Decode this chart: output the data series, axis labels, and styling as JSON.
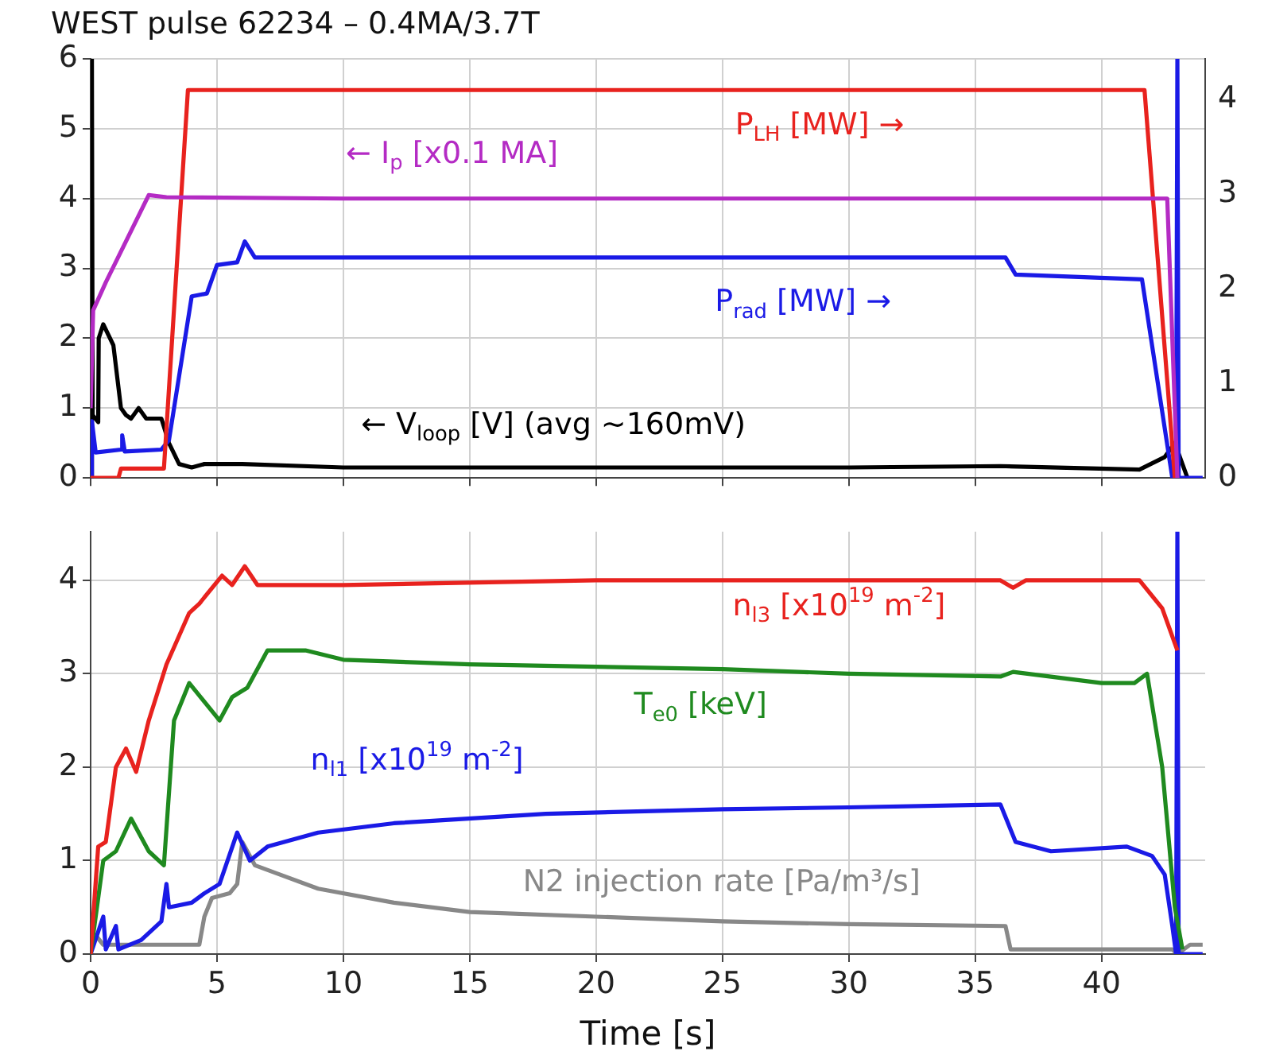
{
  "chart_data": [
    {
      "type": "line",
      "title": "WEST pulse 62234 – 0.4MA/3.7T",
      "xlim": [
        0,
        44.1
      ],
      "xticks": [
        0,
        5,
        10,
        15,
        20,
        25,
        30,
        35,
        40
      ],
      "ylim": [
        0,
        6
      ],
      "yticks": [
        0,
        1,
        2,
        3,
        4,
        5,
        6
      ],
      "y2lim": [
        0,
        4.43
      ],
      "y2ticks": [
        0,
        1,
        2,
        3,
        4
      ],
      "grid": true,
      "legend": false,
      "tick_labels": "y",
      "series": [
        {
          "name": "← I$_{p}$ [x0.1 MA]",
          "color": "#b42bc4",
          "x": [
            0,
            0.1,
            0.6,
            2.3,
            3,
            10,
            20,
            30,
            42.6,
            43.0
          ],
          "values": [
            1.0,
            2.4,
            2.8,
            4.05,
            4.02,
            4.0,
            4.0,
            4.0,
            4.0,
            0
          ]
        },
        {
          "name": "P$_{LH}$ [MW] →",
          "color": "#e8221e",
          "axis": "y2",
          "x": [
            0,
            1.1,
            1.2,
            2.9,
            3.85,
            41.7,
            42.9
          ],
          "values": [
            0,
            0,
            0.1,
            0.1,
            4.1,
            4.1,
            0
          ]
        },
        {
          "name": "P$_{rad}$ [MW] →",
          "color": "#1a1ae6",
          "axis": "y2",
          "x": [
            0,
            0.05,
            0.2,
            1.2,
            1.25,
            1.35,
            2.8,
            3.1,
            4.0,
            4.6,
            5.0,
            5.8,
            6.1,
            6.5,
            20,
            36.2,
            36.6,
            41.6,
            42.8,
            42.95,
            43.0,
            43.05,
            44.0
          ],
          "values": [
            0,
            0.6,
            0.27,
            0.3,
            0.45,
            0.28,
            0.3,
            0.4,
            1.92,
            1.95,
            2.25,
            2.28,
            2.5,
            2.33,
            2.33,
            2.33,
            2.15,
            2.1,
            0,
            0,
            4.43,
            0,
            0
          ]
        },
        {
          "name": "← V$_{loop}$ [V] (avg ~160mV)",
          "color": "#000000",
          "x": [
            0,
            0.05,
            0.08,
            0.3,
            0.32,
            0.5,
            0.9,
            1.2,
            1.4,
            1.6,
            1.9,
            2.2,
            2.8,
            3.1,
            3.5,
            4.0,
            4.5,
            6.0,
            10,
            20,
            30,
            36,
            41.5,
            42.5,
            42.9,
            43.4
          ],
          "values": [
            0,
            6,
            0.9,
            0.8,
            2.0,
            2.2,
            1.9,
            1.0,
            0.9,
            0.85,
            1.0,
            0.85,
            0.85,
            0.5,
            0.2,
            0.15,
            0.2,
            0.2,
            0.15,
            0.15,
            0.15,
            0.17,
            0.12,
            0.3,
            0.5,
            0
          ]
        }
      ]
    },
    {
      "type": "line",
      "xlabel": "Time [s]",
      "xlim": [
        0,
        44.1
      ],
      "xticks": [
        0,
        5,
        10,
        15,
        20,
        25,
        30,
        35,
        40
      ],
      "ylim": [
        0,
        4.52
      ],
      "yticks": [
        0,
        1,
        2,
        3,
        4
      ],
      "grid": true,
      "legend": false,
      "series": [
        {
          "name": "n$_{l3}$ [x10$^{19}$ m$^{-2}$]",
          "color": "#e8221e",
          "x": [
            0,
            0.3,
            0.6,
            1.0,
            1.4,
            1.8,
            2.3,
            3.0,
            3.9,
            4.3,
            5.2,
            5.6,
            6.1,
            6.6,
            10,
            20,
            36,
            36.5,
            37,
            41.5,
            42.4,
            43.0
          ],
          "values": [
            0,
            1.15,
            1.2,
            2.0,
            2.2,
            1.95,
            2.5,
            3.1,
            3.65,
            3.75,
            4.05,
            3.95,
            4.15,
            3.95,
            3.95,
            4.0,
            4.0,
            3.92,
            4.0,
            4.0,
            3.7,
            3.25
          ]
        },
        {
          "name": "T$_{e0}$ [keV]",
          "color": "#1f8a1f",
          "x": [
            0,
            0.5,
            1.0,
            1.6,
            2.3,
            2.9,
            3.3,
            3.9,
            4.8,
            5.1,
            5.6,
            6.2,
            7.0,
            8.5,
            10,
            15,
            25,
            30,
            36,
            36.5,
            40,
            41.3,
            41.8,
            42.4,
            42.9,
            43.2
          ],
          "values": [
            0,
            1.0,
            1.1,
            1.45,
            1.1,
            0.95,
            2.5,
            2.9,
            2.6,
            2.5,
            2.75,
            2.85,
            3.25,
            3.25,
            3.15,
            3.1,
            3.05,
            3.0,
            2.97,
            3.02,
            2.9,
            2.9,
            3.0,
            2.0,
            0.5,
            0.05
          ]
        },
        {
          "name": "n$_{l1}$ [x10$^{19}$ m$^{-2}$]",
          "color": "#1a1ae6",
          "x": [
            0,
            0.5,
            0.6,
            1.0,
            1.1,
            2,
            2.8,
            3.0,
            3.1,
            4.0,
            4.5,
            5.1,
            5.8,
            6.3,
            7,
            9,
            12,
            18,
            25,
            30,
            36,
            36.6,
            38,
            41,
            42,
            42.5,
            42.8,
            42.95,
            43.0,
            43.05,
            44.0
          ],
          "values": [
            0,
            0.4,
            0.05,
            0.3,
            0.05,
            0.15,
            0.35,
            0.75,
            0.5,
            0.55,
            0.65,
            0.75,
            1.3,
            1.0,
            1.15,
            1.3,
            1.4,
            1.5,
            1.55,
            1.57,
            1.6,
            1.2,
            1.1,
            1.15,
            1.05,
            0.85,
            0.3,
            0,
            4.52,
            0,
            0
          ]
        },
        {
          "name": "N2 injection rate [Pa/m³/s]",
          "color": "#888888",
          "x": [
            0.2,
            0.5,
            4.3,
            4.5,
            4.8,
            5.5,
            5.8,
            6.0,
            6.5,
            7.5,
            9,
            12,
            15,
            20,
            25,
            30,
            36.2,
            36.4,
            42.8,
            43.0,
            43.5,
            44.0
          ],
          "values": [
            0.2,
            0.1,
            0.1,
            0.4,
            0.6,
            0.65,
            0.75,
            1.2,
            0.95,
            0.85,
            0.7,
            0.55,
            0.45,
            0.4,
            0.35,
            0.32,
            0.3,
            0.05,
            0.05,
            0,
            0.1,
            0.1
          ]
        }
      ]
    }
  ]
}
